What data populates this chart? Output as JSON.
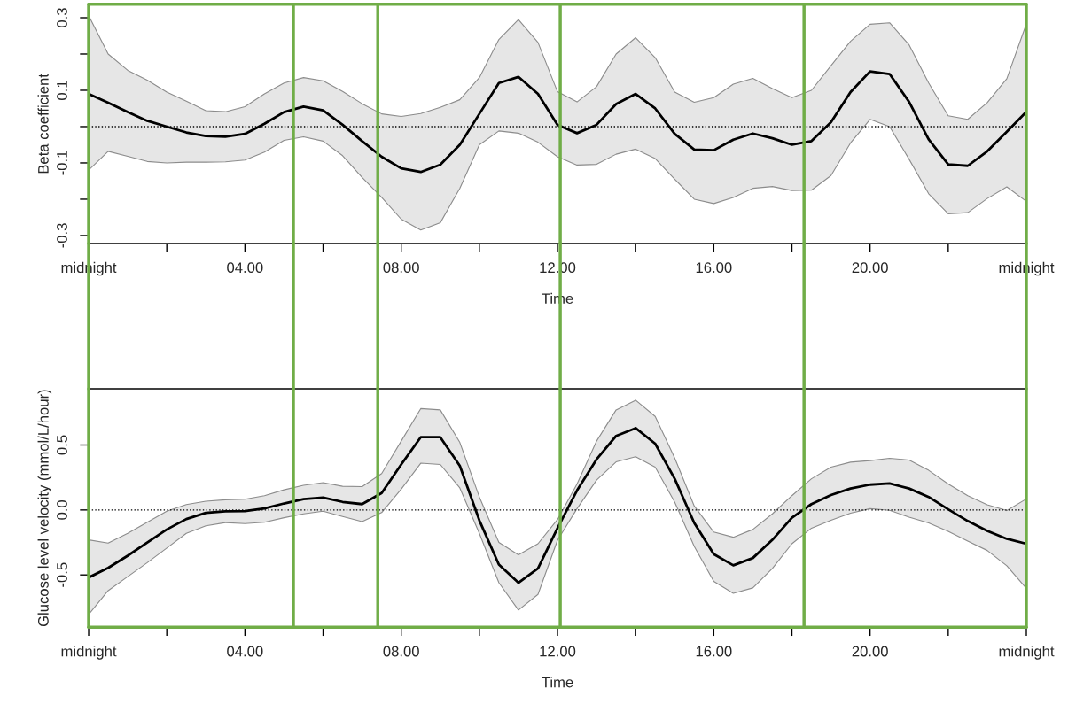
{
  "chart_data": [
    {
      "type": "line",
      "xlabel": "Time",
      "ylabel": "Beta coefficient",
      "x": [
        0,
        0.5,
        1,
        1.5,
        2,
        2.5,
        3,
        3.5,
        4,
        4.5,
        5,
        5.5,
        6,
        6.5,
        7,
        7.5,
        8,
        8.5,
        9,
        9.5,
        10,
        10.5,
        11,
        11.5,
        12,
        12.5,
        13,
        13.5,
        14,
        14.5,
        15,
        15.5,
        16,
        16.5,
        17,
        17.5,
        18,
        18.5,
        19,
        19.5,
        20,
        20.5,
        21,
        21.5,
        22,
        22.5,
        23,
        23.5,
        24
      ],
      "xlim": [
        0,
        24
      ],
      "xticks": [
        {
          "value": 0,
          "label": "midnight"
        },
        {
          "value": 2,
          "label": null
        },
        {
          "value": 4,
          "label": "04.00"
        },
        {
          "value": 6,
          "label": null
        },
        {
          "value": 8,
          "label": "08.00"
        },
        {
          "value": 10,
          "label": null
        },
        {
          "value": 12,
          "label": "12.00"
        },
        {
          "value": 14,
          "label": null
        },
        {
          "value": 16,
          "label": "16.00"
        },
        {
          "value": 18,
          "label": null
        },
        {
          "value": 20,
          "label": "20.00"
        },
        {
          "value": 22,
          "label": null
        },
        {
          "value": 24,
          "label": "midnight"
        }
      ],
      "ylim": [
        -0.322,
        0.337
      ],
      "yticks": [
        -0.3,
        {
          "value": -0.2,
          "label": null
        },
        -0.1,
        {
          "value": 0,
          "label": null
        },
        0.1,
        {
          "value": 0.2,
          "label": null
        },
        0.3
      ],
      "series": [
        {
          "color": "#000000",
          "values": [
            0.09,
            0.066,
            0.04,
            0.016,
            0.0,
            -0.016,
            -0.026,
            -0.028,
            -0.02,
            0.008,
            0.04,
            0.055,
            0.045,
            0.005,
            -0.04,
            -0.083,
            -0.115,
            -0.125,
            -0.105,
            -0.05,
            0.035,
            0.12,
            0.137,
            0.09,
            0.005,
            -0.018,
            0.005,
            0.062,
            0.09,
            0.05,
            -0.02,
            -0.063,
            -0.065,
            -0.036,
            -0.019,
            -0.032,
            -0.05,
            -0.04,
            0.012,
            0.095,
            0.152,
            0.145,
            0.068,
            -0.035,
            -0.104,
            -0.108,
            -0.068,
            -0.014,
            0.041
          ],
          "upper": [
            0.306,
            0.2,
            0.155,
            0.128,
            0.095,
            0.07,
            0.044,
            0.041,
            0.055,
            0.09,
            0.12,
            0.135,
            0.126,
            0.097,
            0.063,
            0.035,
            0.028,
            0.036,
            0.053,
            0.074,
            0.135,
            0.24,
            0.295,
            0.232,
            0.096,
            0.068,
            0.11,
            0.2,
            0.245,
            0.19,
            0.095,
            0.067,
            0.08,
            0.117,
            0.133,
            0.105,
            0.08,
            0.1,
            0.168,
            0.235,
            0.282,
            0.286,
            0.225,
            0.12,
            0.03,
            0.02,
            0.066,
            0.132,
            0.283
          ],
          "lower": [
            -0.12,
            -0.068,
            -0.082,
            -0.096,
            -0.1,
            -0.098,
            -0.098,
            -0.097,
            -0.092,
            -0.07,
            -0.038,
            -0.028,
            -0.04,
            -0.08,
            -0.14,
            -0.195,
            -0.255,
            -0.285,
            -0.265,
            -0.17,
            -0.05,
            -0.012,
            -0.018,
            -0.043,
            -0.083,
            -0.106,
            -0.104,
            -0.076,
            -0.062,
            -0.088,
            -0.145,
            -0.2,
            -0.212,
            -0.195,
            -0.17,
            -0.165,
            -0.176,
            -0.175,
            -0.135,
            -0.045,
            0.02,
            0.0,
            -0.09,
            -0.185,
            -0.24,
            -0.237,
            -0.198,
            -0.166,
            -0.206
          ]
        }
      ],
      "ref_lines": [
        {
          "axis": "y",
          "value": 0,
          "color": "#000000",
          "line_style": "dotted"
        },
        {
          "axis": "x",
          "value": 0,
          "color": "#70ad47",
          "line_style": "solid"
        },
        {
          "axis": "x",
          "value": 5.24,
          "color": "#70ad47",
          "line_style": "solid"
        },
        {
          "axis": "x",
          "value": 7.4,
          "color": "#70ad47",
          "line_style": "solid"
        },
        {
          "axis": "x",
          "value": 12.07,
          "color": "#70ad47",
          "line_style": "solid"
        },
        {
          "axis": "x",
          "value": 18.31,
          "color": "#70ad47",
          "line_style": "solid"
        },
        {
          "axis": "x",
          "value": 24,
          "color": "#70ad47",
          "line_style": "solid"
        }
      ]
    },
    {
      "type": "line",
      "xlabel": "Time",
      "ylabel": "Glucose level velocity (mmol/L/hour)",
      "x": [
        0,
        0.5,
        1,
        1.5,
        2,
        2.5,
        3,
        3.5,
        4,
        4.5,
        5,
        5.5,
        6,
        6.5,
        7,
        7.5,
        8,
        8.5,
        9,
        9.5,
        10,
        10.5,
        11,
        11.5,
        12,
        12.5,
        13,
        13.5,
        14,
        14.5,
        15,
        15.5,
        16,
        16.5,
        17,
        17.5,
        18,
        18.5,
        19,
        19.5,
        20,
        20.5,
        21,
        21.5,
        22,
        22.5,
        23,
        23.5,
        24
      ],
      "xlim": [
        0,
        24
      ],
      "xticks": [
        {
          "value": 0,
          "label": "midnight"
        },
        {
          "value": 2,
          "label": null
        },
        {
          "value": 4,
          "label": "04.00"
        },
        {
          "value": 6,
          "label": null
        },
        {
          "value": 8,
          "label": "08.00"
        },
        {
          "value": 10,
          "label": null
        },
        {
          "value": 12,
          "label": "12.00"
        },
        {
          "value": 14,
          "label": null
        },
        {
          "value": 16,
          "label": "16.00"
        },
        {
          "value": 18,
          "label": null
        },
        {
          "value": 20,
          "label": "20.00"
        },
        {
          "value": 22,
          "label": null
        },
        {
          "value": 24,
          "label": "midnight"
        }
      ],
      "ylim": [
        -0.903,
        0.933
      ],
      "yticks": [
        -0.5,
        {
          "value": 0,
          "label": "0.0"
        },
        0.5
      ],
      "series": [
        {
          "color": "#000000",
          "values": [
            -0.52,
            -0.446,
            -0.352,
            -0.25,
            -0.15,
            -0.07,
            -0.022,
            -0.011,
            -0.008,
            0.012,
            0.05,
            0.083,
            0.095,
            0.062,
            0.045,
            0.13,
            0.35,
            0.56,
            0.56,
            0.34,
            -0.08,
            -0.42,
            -0.56,
            -0.45,
            -0.14,
            0.15,
            0.39,
            0.57,
            0.63,
            0.51,
            0.24,
            -0.1,
            -0.34,
            -0.426,
            -0.37,
            -0.23,
            -0.06,
            0.045,
            0.115,
            0.165,
            0.195,
            0.204,
            0.165,
            0.1,
            0.005,
            -0.085,
            -0.161,
            -0.222,
            -0.26
          ],
          "upper": [
            -0.23,
            -0.255,
            -0.18,
            -0.095,
            -0.01,
            0.042,
            0.067,
            0.078,
            0.083,
            0.11,
            0.155,
            0.19,
            0.21,
            0.182,
            0.18,
            0.28,
            0.53,
            0.78,
            0.77,
            0.52,
            0.1,
            -0.25,
            -0.345,
            -0.26,
            -0.074,
            0.2,
            0.53,
            0.77,
            0.845,
            0.72,
            0.4,
            0.03,
            -0.17,
            -0.21,
            -0.15,
            -0.03,
            0.11,
            0.24,
            0.33,
            0.368,
            0.38,
            0.398,
            0.384,
            0.305,
            0.2,
            0.11,
            0.04,
            -0.005,
            0.085
          ],
          "lower": [
            -0.804,
            -0.621,
            -0.513,
            -0.406,
            -0.293,
            -0.18,
            -0.122,
            -0.097,
            -0.105,
            -0.095,
            -0.06,
            -0.03,
            -0.01,
            -0.05,
            -0.09,
            -0.02,
            0.16,
            0.36,
            0.35,
            0.17,
            -0.18,
            -0.56,
            -0.77,
            -0.65,
            -0.233,
            0.01,
            0.23,
            0.37,
            0.41,
            0.33,
            0.06,
            -0.28,
            -0.55,
            -0.642,
            -0.6,
            -0.45,
            -0.26,
            -0.14,
            -0.08,
            -0.025,
            0.01,
            -0.003,
            -0.055,
            -0.1,
            -0.165,
            -0.24,
            -0.312,
            -0.43,
            -0.603
          ]
        }
      ],
      "ref_lines": [
        {
          "axis": "y",
          "value": 0,
          "color": "#000000",
          "line_style": "dotted"
        },
        {
          "axis": "x",
          "value": 0,
          "color": "#70ad47",
          "line_style": "solid"
        },
        {
          "axis": "x",
          "value": 5.24,
          "color": "#70ad47",
          "line_style": "solid"
        },
        {
          "axis": "x",
          "value": 7.4,
          "color": "#70ad47",
          "line_style": "solid"
        },
        {
          "axis": "x",
          "value": 12.07,
          "color": "#70ad47",
          "line_style": "solid"
        },
        {
          "axis": "x",
          "value": 18.31,
          "color": "#70ad47",
          "line_style": "solid"
        },
        {
          "axis": "x",
          "value": 24,
          "color": "#70ad47",
          "line_style": "solid"
        }
      ]
    }
  ]
}
